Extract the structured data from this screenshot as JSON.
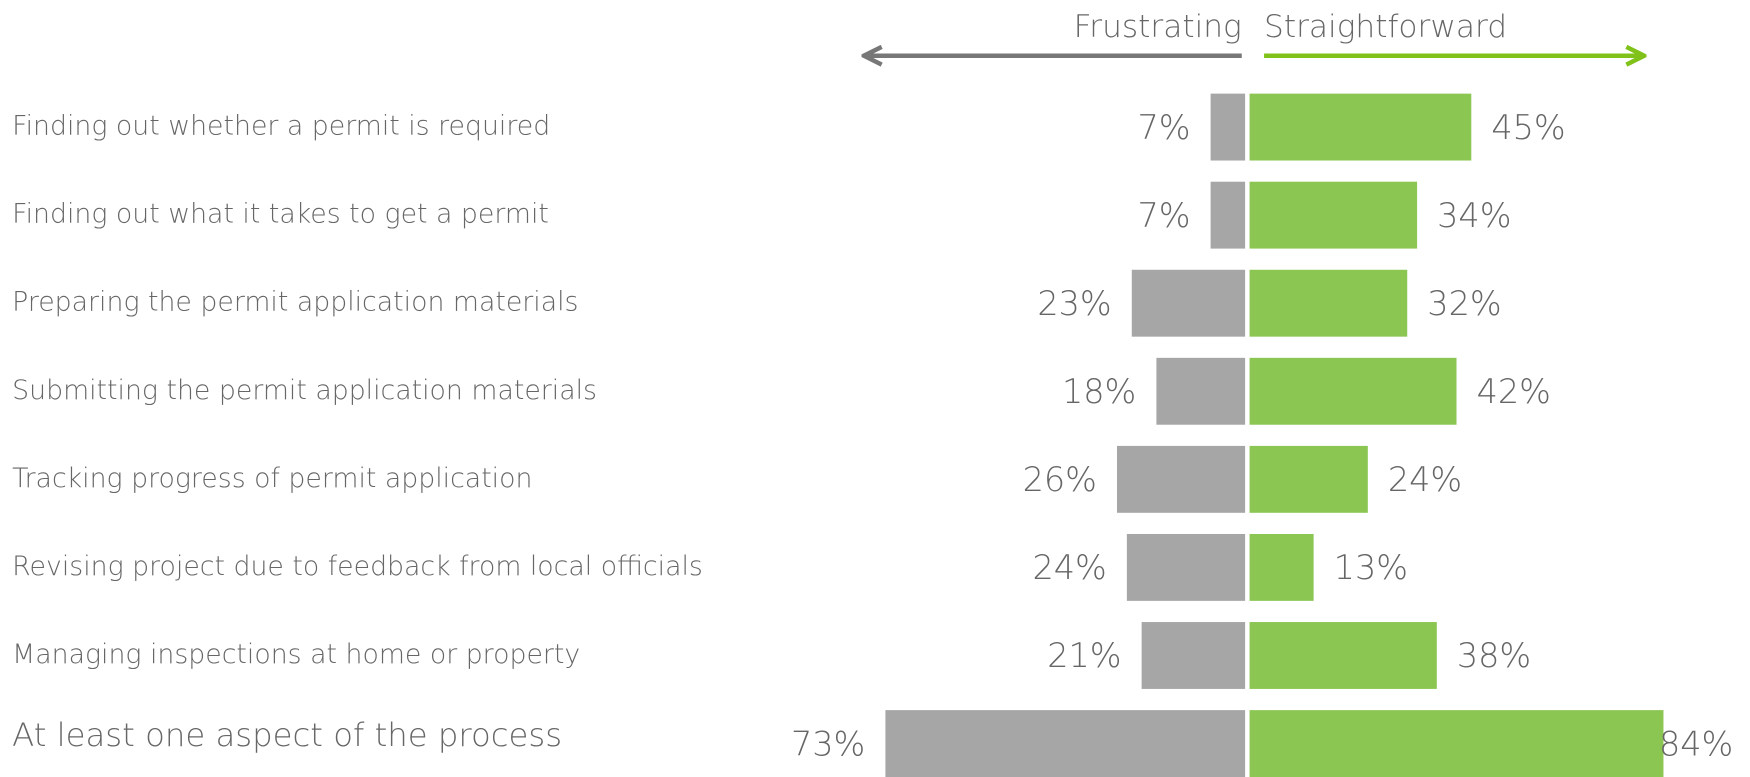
{
  "chart_data": {
    "type": "diverging-bar",
    "categories": [
      "Finding out whether a permit is required",
      "Finding out what it takes to get a permit",
      "Preparing the permit application materials",
      "Submitting the permit application materials",
      "Tracking progress of permit application",
      "Revising project due to feedback from local officials",
      "Managing inspections at home or property",
      "At least one aspect of the process"
    ],
    "series": [
      {
        "name": "Frustrating",
        "color": "#a6a6a6",
        "values": [
          7,
          7,
          23,
          18,
          26,
          24,
          21,
          73
        ],
        "value_labels": [
          "7%",
          "7%",
          "23%",
          "18%",
          "26%",
          "24%",
          "21%",
          "73%"
        ]
      },
      {
        "name": "Straightforward",
        "color": "#8bc653",
        "values": [
          45,
          34,
          32,
          42,
          24,
          13,
          38,
          84
        ],
        "value_labels": [
          "45%",
          "34%",
          "32%",
          "42%",
          "24%",
          "13%",
          "38%",
          "84%"
        ]
      }
    ]
  }
}
